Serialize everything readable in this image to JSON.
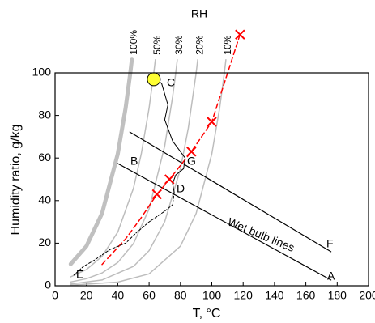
{
  "chart_data": {
    "type": "line",
    "title": "RH",
    "xlabel": "T, °C",
    "ylabel": "Humidity ratio, g/kg",
    "xlim": [
      0,
      200
    ],
    "ylim": [
      0,
      100
    ],
    "xticks": [
      0,
      20,
      40,
      60,
      80,
      100,
      120,
      140,
      160,
      180,
      200
    ],
    "yticks": [
      0,
      20,
      40,
      60,
      80,
      100
    ],
    "annotations": [
      "A",
      "B",
      "C",
      "D",
      "E",
      "F",
      "G",
      "Wet bulb lines"
    ],
    "series": [
      {
        "name": "100%",
        "color": "#c0c0c0",
        "width": 5,
        "style": "solid",
        "x": [
          10,
          20,
          30,
          40,
          45,
          48,
          49
        ],
        "values": [
          10.2,
          18.6,
          34,
          61.9,
          83.5,
          100,
          106.2
        ]
      },
      {
        "name": "50%",
        "color": "#bdbdbd",
        "width": 1.5,
        "style": "solid",
        "x": [
          10,
          20,
          30,
          40,
          50,
          55,
          60,
          63,
          64
        ],
        "values": [
          4.2,
          7.6,
          13.8,
          25.2,
          45.8,
          61.9,
          83.5,
          100,
          106.2
        ]
      },
      {
        "name": "30%",
        "color": "#bdbdbd",
        "width": 1.5,
        "style": "solid",
        "x": [
          10,
          20,
          30,
          40,
          50,
          60,
          70,
          75,
          77,
          78
        ],
        "values": [
          1.8,
          3.3,
          6,
          10.9,
          19.8,
          36.1,
          65.7,
          88.7,
          100,
          106.2
        ]
      },
      {
        "name": "20%",
        "color": "#bdbdbd",
        "width": 1.5,
        "style": "solid",
        "x": [
          10,
          30,
          50,
          60,
          70,
          80,
          85,
          90,
          91
        ],
        "values": [
          0.8,
          2.7,
          9.1,
          16.5,
          30.1,
          54.9,
          74.1,
          100,
          106.2
        ]
      },
      {
        "name": "10%",
        "color": "#bdbdbd",
        "width": 1.5,
        "style": "solid",
        "x": [
          10,
          40,
          60,
          80,
          90,
          100,
          105,
          108,
          109
        ],
        "values": [
          0.3,
          1.7,
          5.6,
          18.6,
          34,
          61.9,
          83.5,
          100,
          106.2
        ]
      },
      {
        "color": "#000000",
        "width": 1.2,
        "style": "solid",
        "x": [
          47.7,
          176
        ],
        "values": [
          72.2,
          16
        ]
      },
      {
        "color": "#000000",
        "width": 1.2,
        "style": "solid",
        "x": [
          40,
          176
        ],
        "values": [
          57.4,
          2.7
        ]
      },
      {
        "color": "#ff0000",
        "width": 1.5,
        "style": "dashed",
        "x": [
          30,
          45,
          55,
          65,
          73,
          87,
          100,
          118
        ],
        "values": [
          10,
          22,
          32,
          43,
          50,
          63,
          77,
          118
        ]
      },
      {
        "color": "#ff0000",
        "width": 2,
        "style": "none",
        "marker": "x",
        "x": [
          65,
          73,
          87,
          100,
          118
        ],
        "values": [
          43,
          50,
          63,
          77,
          118
        ]
      },
      {
        "color": "#000000",
        "width": 1,
        "style": "solid",
        "x": [
          65,
          68,
          72,
          70,
          75,
          83,
          82,
          77,
          75,
          76
        ],
        "values": [
          97,
          95,
          85,
          78,
          68,
          60,
          55,
          52,
          48,
          44
        ]
      },
      {
        "color": "#000000",
        "width": 1,
        "style": "dashed",
        "x": [
          76,
          75,
          70,
          60,
          52,
          45,
          35,
          25,
          18,
          12
        ],
        "values": [
          44,
          38,
          35,
          30,
          25,
          20,
          17,
          12,
          9,
          5
        ]
      },
      {
        "color": "#ffff33",
        "width": 1,
        "style": "none",
        "marker": "circle",
        "x": [
          63
        ],
        "values": [
          97
        ]
      }
    ]
  }
}
